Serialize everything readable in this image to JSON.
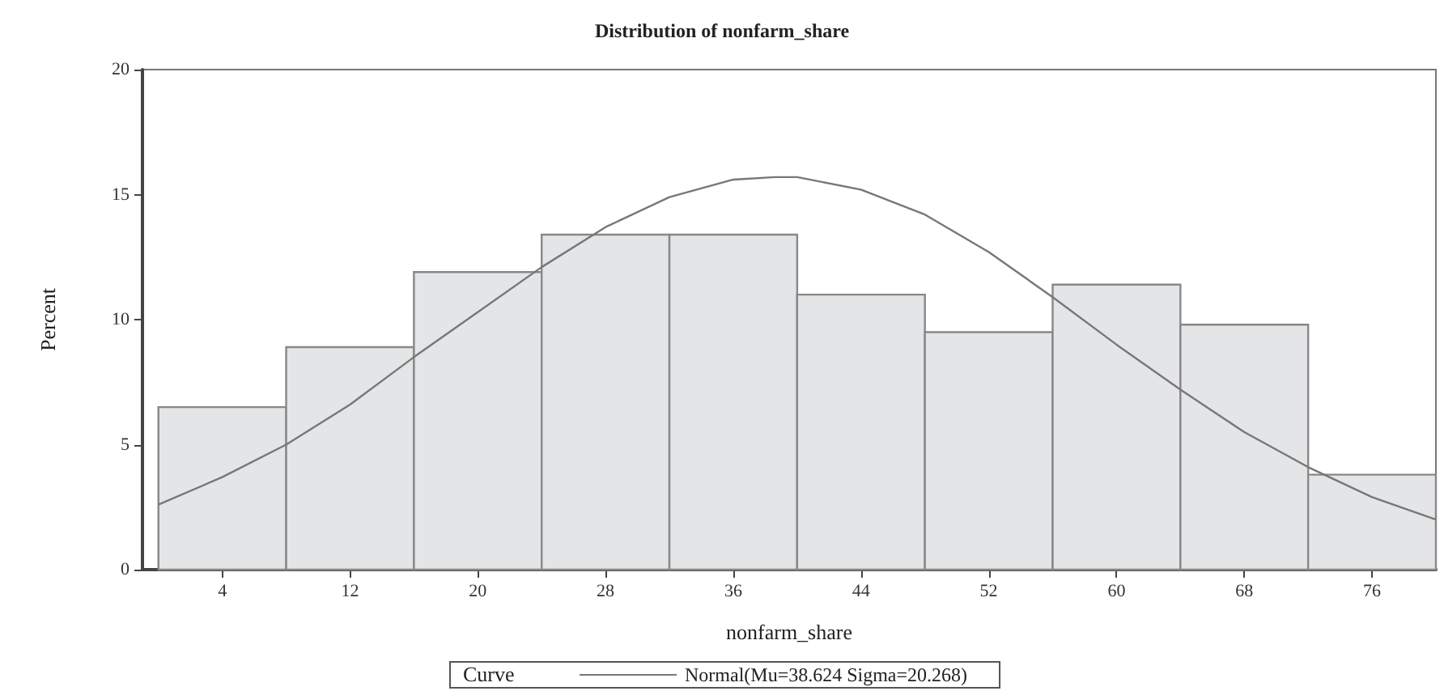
{
  "chart_data": {
    "type": "histogram",
    "title": "Distribution of nonfarm_share",
    "xlabel": "nonfarm_share",
    "ylabel": "Percent",
    "legend_title": "Curve",
    "bins": [
      0,
      8,
      16,
      24,
      32,
      40,
      48,
      56,
      64,
      72,
      80
    ],
    "values": [
      6.5,
      8.9,
      11.9,
      13.4,
      13.4,
      11.0,
      9.5,
      11.4,
      9.8,
      3.8
    ],
    "color": "#e4e5e7",
    "series": [
      {
        "type": "line",
        "name": "Normal(Mu=38.624 Sigma=20.268)",
        "color": "#777777",
        "x": [
          0,
          4,
          8,
          12,
          16,
          20,
          24,
          28,
          32,
          36,
          38.6,
          40,
          44,
          48,
          52,
          56,
          60,
          64,
          68,
          72,
          76,
          80
        ],
        "values": [
          2.6,
          3.7,
          5.0,
          6.6,
          8.5,
          10.3,
          12.1,
          13.7,
          14.9,
          15.6,
          15.7,
          15.7,
          15.2,
          14.2,
          12.7,
          10.9,
          9.0,
          7.2,
          5.5,
          4.1,
          2.9,
          2.0
        ]
      }
    ],
    "xlim": [
      -1,
      80
    ],
    "xticks": [
      4,
      12,
      20,
      28,
      36,
      44,
      52,
      60,
      68,
      76
    ],
    "ylim": [
      0,
      20
    ],
    "yticks": [
      0,
      5,
      10,
      15,
      20
    ],
    "grid": false,
    "legend": "bottom",
    "marker": "none",
    "line_style": "solid"
  }
}
